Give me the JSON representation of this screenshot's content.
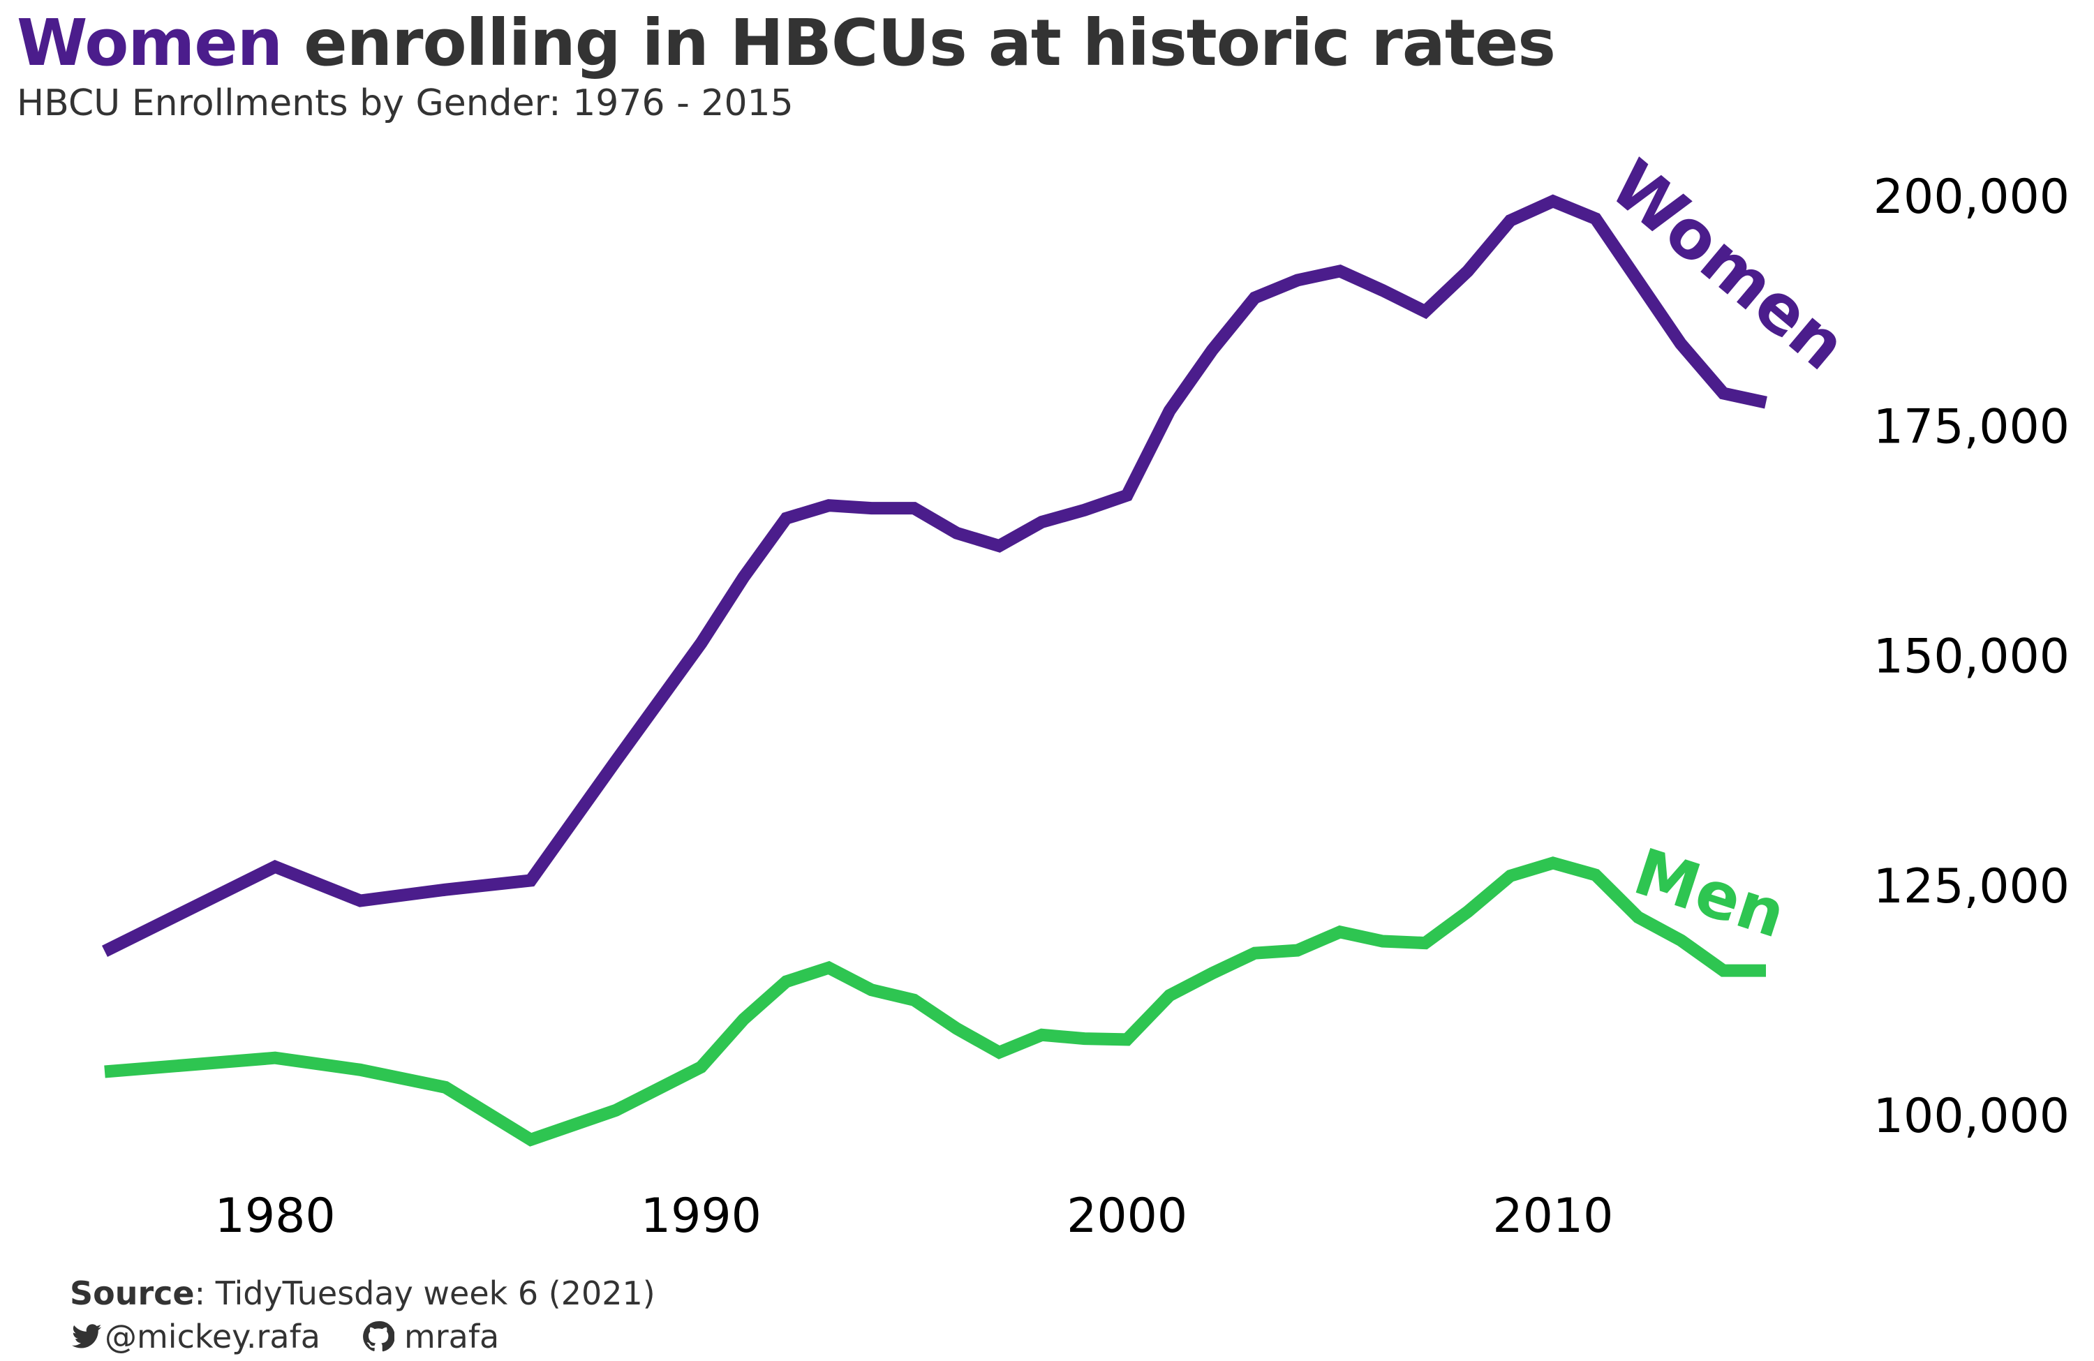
{
  "title": {
    "highlight": "Women",
    "rest": " enrolling in HBCUs at historic rates",
    "highlight_color": "#4b1d8c"
  },
  "subtitle": "HBCU Enrollments by Gender: 1976 - 2015",
  "caption": {
    "source_label": "Source",
    "source_text": ": TidyTuesday week 6 (2021)",
    "twitter_icon": "twitter-icon",
    "twitter_handle": "@mickey.rafa",
    "github_icon": "github-icon",
    "github_handle": "mrafa"
  },
  "chart_data": {
    "type": "line",
    "title": "Women enrolling in HBCUs at historic rates",
    "subtitle": "HBCU Enrollments by Gender: 1976 - 2015",
    "xlabel": "",
    "ylabel": "",
    "xlim": [
      1976,
      2015
    ],
    "ylim": [
      95000,
      207000
    ],
    "x_ticks": [
      1980,
      1990,
      2000,
      2010
    ],
    "x_tick_labels": [
      "1980",
      "1990",
      "2000",
      "2010"
    ],
    "y_ticks": [
      100000,
      125000,
      150000,
      175000,
      200000
    ],
    "y_tick_labels": [
      "100,000",
      "125,000",
      "150,000",
      "175,000",
      "200,000"
    ],
    "y_axis_position": "right",
    "grid": false,
    "legend": "direct-labels",
    "series": [
      {
        "name": "Women",
        "label": "Women",
        "color": "#4b1d8c",
        "x": [
          1976,
          1980,
          1982,
          1984,
          1986,
          1988,
          1990,
          1991,
          1992,
          1993,
          1994,
          1995,
          1996,
          1997,
          1998,
          1999,
          2000,
          2001,
          2002,
          2003,
          2004,
          2005,
          2006,
          2007,
          2008,
          2009,
          2010,
          2011,
          2012,
          2013,
          2014,
          2015
        ],
        "values": [
          118000,
          127200,
          123500,
          124700,
          125700,
          138700,
          151500,
          158700,
          165100,
          166500,
          166200,
          166200,
          163500,
          162100,
          164700,
          166000,
          167600,
          176800,
          183400,
          189100,
          191000,
          192000,
          189900,
          187600,
          192000,
          197500,
          199600,
          197700,
          190900,
          184100,
          178700,
          177700
        ]
      },
      {
        "name": "Men",
        "label": "Men",
        "color": "#2ec551",
        "x": [
          1976,
          1980,
          1982,
          1984,
          1986,
          1988,
          1990,
          1991,
          1992,
          1993,
          1994,
          1995,
          1996,
          1997,
          1998,
          1999,
          2000,
          2001,
          2002,
          2003,
          2004,
          2005,
          2006,
          2007,
          2008,
          2009,
          2010,
          2011,
          2012,
          2013,
          2014,
          2015
        ],
        "values": [
          104900,
          106400,
          105100,
          103200,
          97500,
          100700,
          105400,
          110600,
          114700,
          116200,
          113800,
          112700,
          109600,
          107000,
          108900,
          108500,
          108400,
          113200,
          115600,
          117800,
          118100,
          120100,
          119100,
          118900,
          122300,
          126200,
          127600,
          126300,
          121700,
          119200,
          115900,
          115900
        ]
      }
    ]
  }
}
